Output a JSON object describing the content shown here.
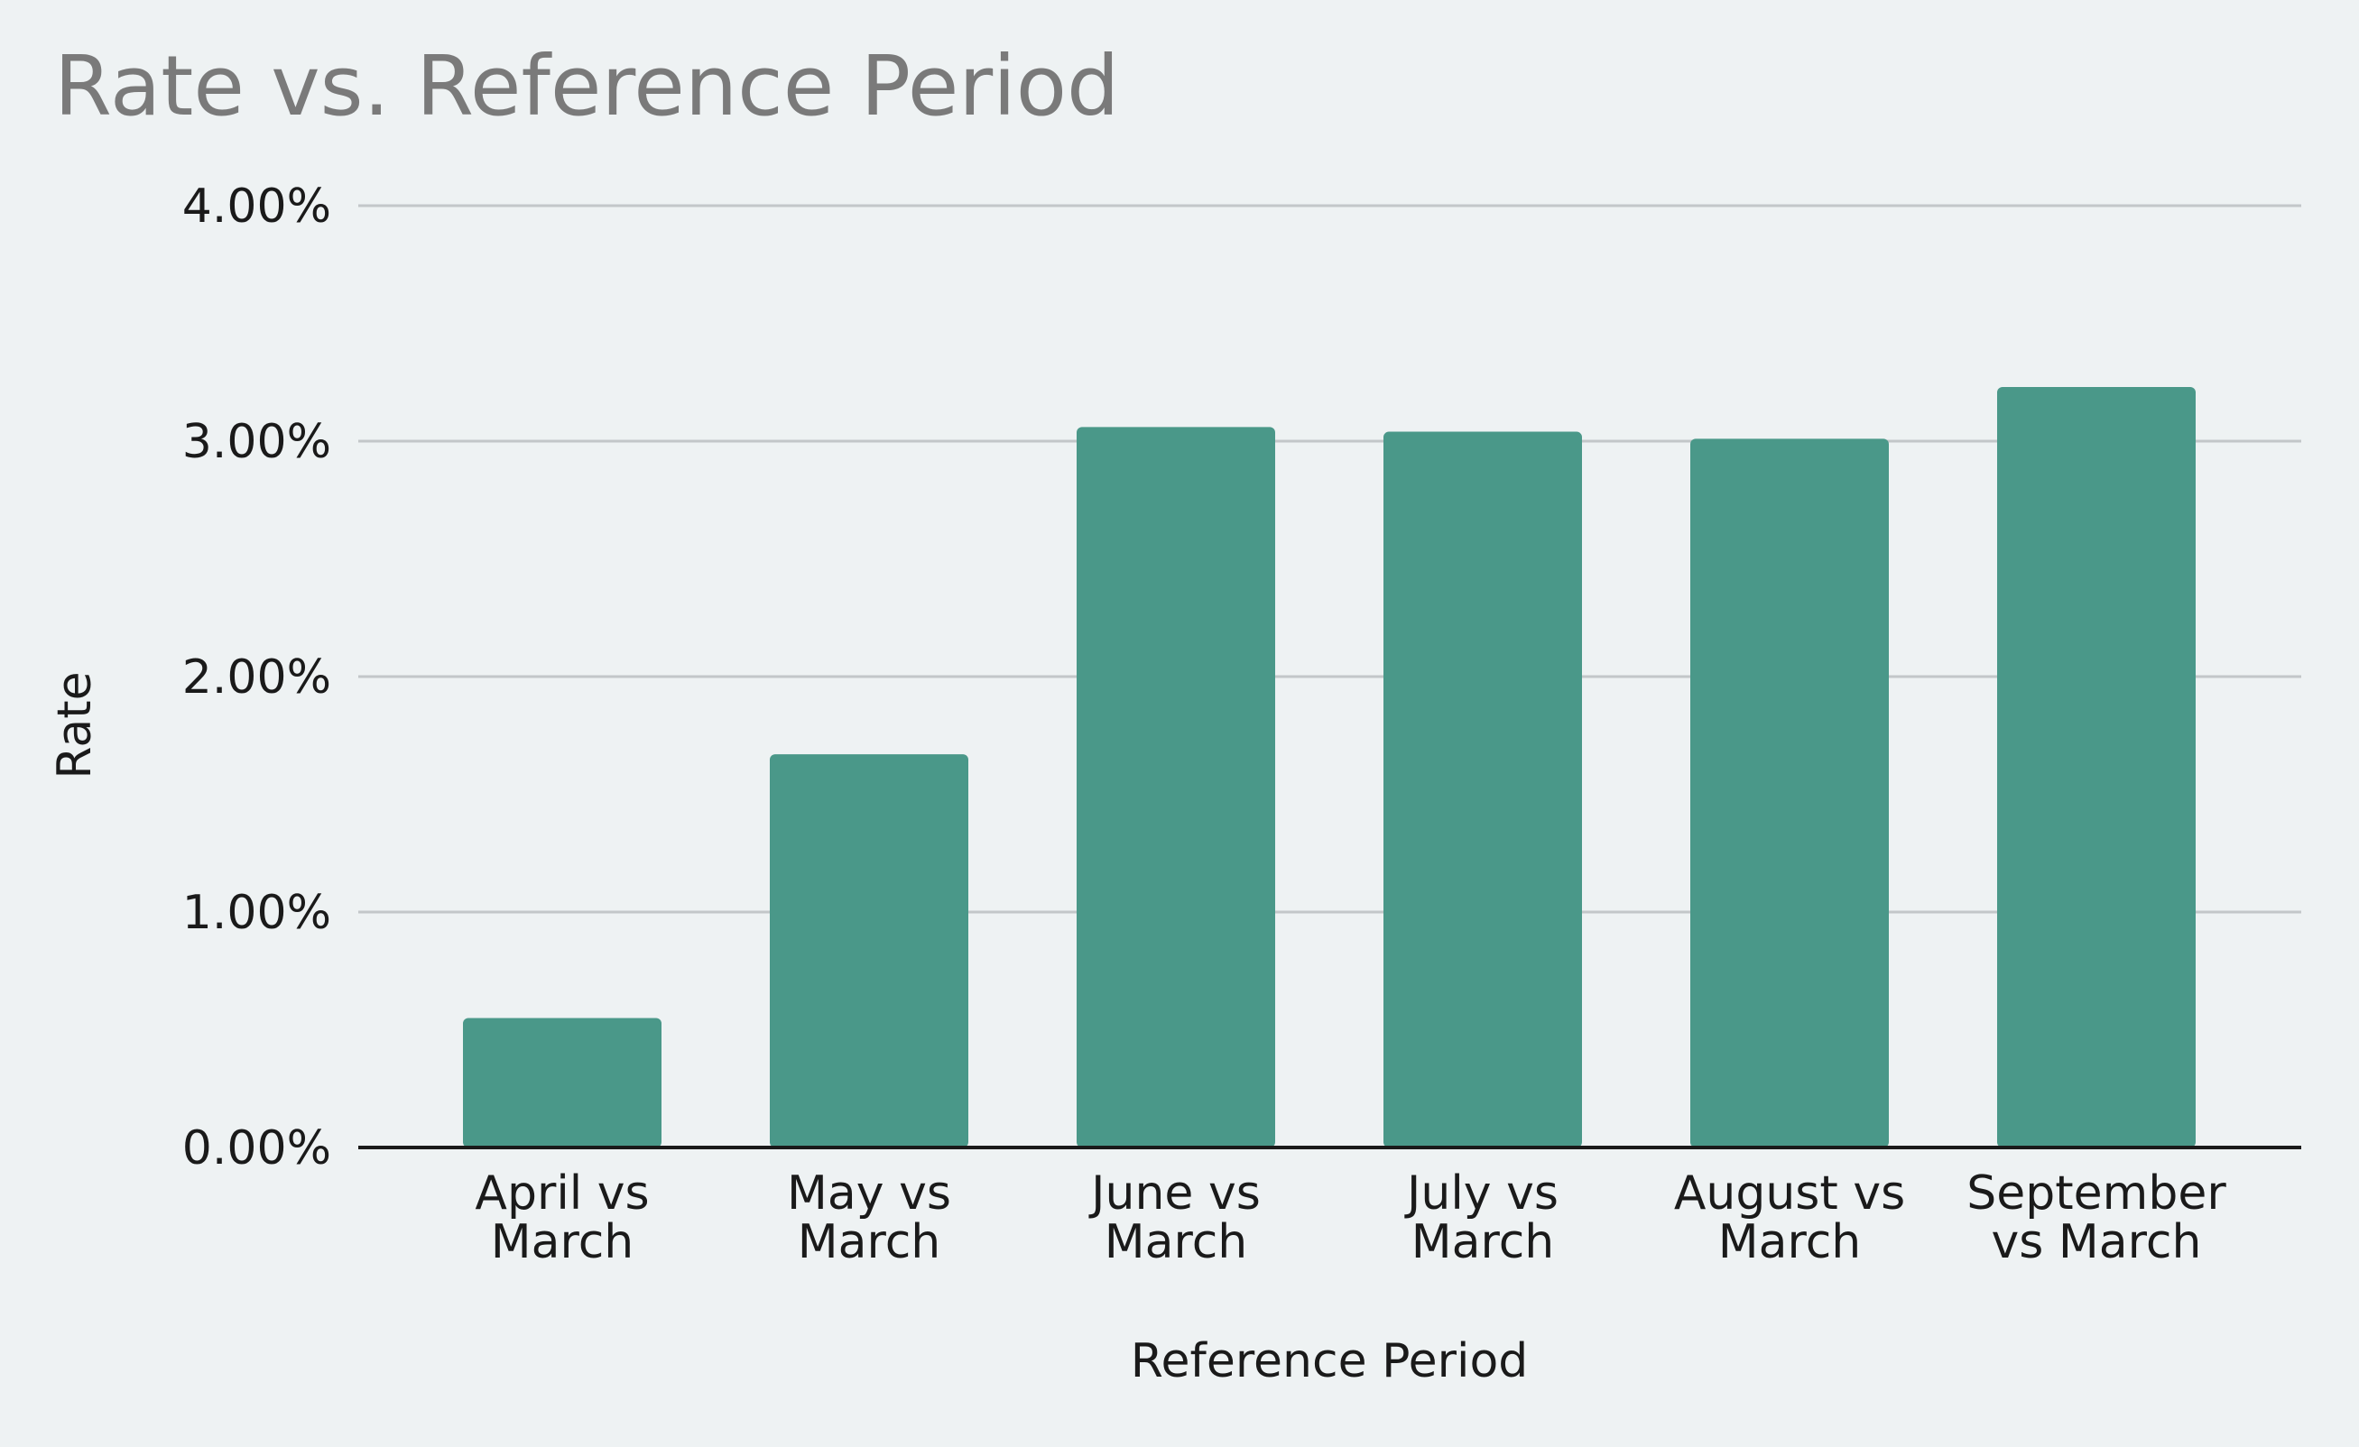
{
  "chart_data": {
    "type": "bar",
    "title": "Rate vs. Reference Period",
    "xlabel": "Reference Period",
    "ylabel": "Rate",
    "categories": [
      [
        "April vs",
        "March"
      ],
      [
        "May vs",
        "March"
      ],
      [
        "June vs",
        "March"
      ],
      [
        "July vs",
        "March"
      ],
      [
        "August vs",
        "March"
      ],
      [
        "September",
        "vs March"
      ]
    ],
    "values": [
      0.55,
      1.67,
      3.06,
      3.04,
      3.01,
      3.23
    ],
    "ylim": [
      0,
      4
    ],
    "yticks": [
      0,
      1,
      2,
      3,
      4
    ],
    "ytick_labels": [
      "0.00%",
      "1.00%",
      "2.00%",
      "3.00%",
      "4.00%"
    ],
    "grid": true,
    "bar_color": "#4a9889",
    "grid_color": "#c3c7c9",
    "axis_color": "#1a1a1a"
  }
}
